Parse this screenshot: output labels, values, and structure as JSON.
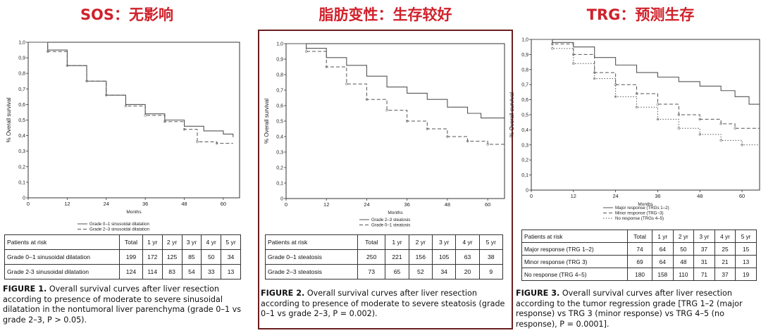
{
  "headers": [
    {
      "text": "SOS：无影响"
    },
    {
      "text": "脂肪变性：生存较好"
    },
    {
      "text": "TRG：预测生存"
    }
  ],
  "panels": [
    {
      "caption_label": "FIGURE 1.",
      "caption_text": " Overall survival curves after liver resection according to presence of moderate to severe sinusoidal dilatation in the nontumoral liver parenchyma (grade 0–1 vs grade 2–3, P > 0.05).",
      "risk_table": {
        "headers": [
          "Patients at risk",
          "Total",
          "1 yr",
          "2 yr",
          "3 yr",
          "4 yr",
          "5 yr"
        ],
        "rows": [
          [
            "Grade 0–1 sinusoidal dilatation",
            "199",
            "172",
            "125",
            "85",
            "50",
            "34"
          ],
          [
            "Grade 2-3 sinusoidal dilatation",
            "124",
            "114",
            "83",
            "54",
            "33",
            "13"
          ]
        ]
      }
    },
    {
      "caption_label": "FIGURE 2.",
      "caption_text": " Overall survival curves after liver resection according to presence of moderate to severe steatosis (grade 0–1 vs grade 2–3, P = 0.002).",
      "risk_table": {
        "headers": [
          "Patients at risk",
          "Total",
          "1 yr",
          "2 yr",
          "3 yr",
          "4 yr",
          "5 yr"
        ],
        "rows": [
          [
            "Grade 0–1 steatosis",
            "250",
            "221",
            "156",
            "105",
            "63",
            "38"
          ],
          [
            "Grade 2–3 steatosis",
            "73",
            "65",
            "52",
            "34",
            "20",
            "9"
          ]
        ]
      }
    },
    {
      "caption_label": "FIGURE 3.",
      "caption_text": " Overall survival curves after liver resection according to the tumor regression grade [TRG 1–2 (major response) vs TRG 3 (minor response) vs TRG 4–5 (no response), P = 0.0001].",
      "risk_table": {
        "headers": [
          "Patients at risk",
          "Total",
          "1 yr",
          "2 yr",
          "3 yr",
          "4 yr",
          "5 yr"
        ],
        "rows": [
          [
            "Major response (TRG 1–2)",
            "74",
            "64",
            "50",
            "37",
            "25",
            "15"
          ],
          [
            "Minor response (TRG 3)",
            "69",
            "64",
            "48",
            "31",
            "21",
            "13"
          ],
          [
            "No response (TRG 4–5)",
            "180",
            "158",
            "110",
            "71",
            "37",
            "19"
          ]
        ]
      }
    }
  ],
  "chart_data": [
    {
      "type": "line",
      "title": "",
      "xlabel": "Months",
      "ylabel": "% Overall survival",
      "xlim": [
        0,
        65
      ],
      "ylim": [
        0,
        1.0
      ],
      "xticks": [
        0,
        12,
        24,
        36,
        48,
        60
      ],
      "yticks": [
        "0",
        "0,1",
        "0,2",
        "0,3",
        "0,4",
        "0,5",
        "0,6",
        "0,7",
        "0,8",
        "0,9",
        "1,0"
      ],
      "legend_position": "bottom-left",
      "series": [
        {
          "name": "Grade 0–1 sinusoidal dilatation",
          "style": "solid",
          "x": [
            0,
            6,
            12,
            18,
            24,
            30,
            36,
            42,
            48,
            54,
            60,
            63
          ],
          "y": [
            1.0,
            0.95,
            0.85,
            0.75,
            0.66,
            0.6,
            0.54,
            0.5,
            0.46,
            0.43,
            0.41,
            0.39
          ]
        },
        {
          "name": "Grade 2–3 sinusoidal dilatation",
          "style": "dashed",
          "x": [
            0,
            6,
            12,
            18,
            24,
            30,
            36,
            42,
            48,
            52,
            58,
            63
          ],
          "y": [
            1.0,
            0.94,
            0.85,
            0.75,
            0.66,
            0.59,
            0.53,
            0.49,
            0.44,
            0.36,
            0.35,
            0.35
          ]
        }
      ]
    },
    {
      "type": "line",
      "title": "",
      "xlabel": "Months",
      "ylabel": "% Overall survival",
      "xlim": [
        0,
        65
      ],
      "ylim": [
        0,
        1.0
      ],
      "xticks": [
        0,
        12,
        24,
        36,
        48,
        60
      ],
      "yticks": [
        "0",
        "0,1",
        "0,2",
        "0,3",
        "0,4",
        "0,5",
        "0,6",
        "0,7",
        "0,8",
        "0,9",
        "1,0"
      ],
      "legend_position": "bottom-left",
      "series": [
        {
          "name": "Grade 2–3 steatosis",
          "style": "solid",
          "x": [
            0,
            6,
            12,
            18,
            24,
            30,
            36,
            42,
            48,
            54,
            58,
            65
          ],
          "y": [
            1.0,
            0.97,
            0.91,
            0.86,
            0.79,
            0.72,
            0.68,
            0.64,
            0.59,
            0.55,
            0.52,
            0.52
          ]
        },
        {
          "name": "Grade 0–1 steatosis",
          "style": "dashed",
          "x": [
            0,
            6,
            12,
            18,
            24,
            30,
            36,
            42,
            48,
            54,
            60,
            65
          ],
          "y": [
            1.0,
            0.95,
            0.85,
            0.74,
            0.64,
            0.57,
            0.5,
            0.45,
            0.4,
            0.37,
            0.35,
            0.33
          ]
        }
      ]
    },
    {
      "type": "line",
      "title": "",
      "xlabel": "Months",
      "ylabel": "% Overall survival",
      "xlim": [
        0,
        65
      ],
      "ylim": [
        0,
        1.0
      ],
      "xticks": [
        0,
        12,
        24,
        36,
        48,
        60
      ],
      "yticks": [
        "0",
        "0,1",
        "0,2",
        "0,3",
        "0,4",
        "0,5",
        "0,6",
        "0,7",
        "0,8",
        "0,9",
        "1,0"
      ],
      "legend_position": "bottom-right",
      "series": [
        {
          "name": "Major response (TRGs 1–2)",
          "style": "solid",
          "x": [
            0,
            6,
            12,
            18,
            24,
            30,
            36,
            42,
            48,
            54,
            58,
            62,
            65
          ],
          "y": [
            1.0,
            0.98,
            0.95,
            0.88,
            0.83,
            0.78,
            0.75,
            0.72,
            0.69,
            0.66,
            0.62,
            0.57,
            0.57
          ]
        },
        {
          "name": "Minor response (TRG−3)",
          "style": "dashed",
          "x": [
            0,
            6,
            12,
            18,
            24,
            30,
            36,
            42,
            48,
            54,
            58,
            65
          ],
          "y": [
            1.0,
            0.97,
            0.9,
            0.78,
            0.7,
            0.64,
            0.57,
            0.5,
            0.47,
            0.44,
            0.41,
            0.41
          ]
        },
        {
          "name": "No response (TRGs 4–5)",
          "style": "dotted",
          "x": [
            0,
            6,
            12,
            18,
            24,
            30,
            36,
            42,
            48,
            54,
            60,
            65
          ],
          "y": [
            1.0,
            0.94,
            0.84,
            0.74,
            0.62,
            0.55,
            0.47,
            0.41,
            0.37,
            0.33,
            0.3,
            0.3
          ]
        }
      ]
    }
  ]
}
